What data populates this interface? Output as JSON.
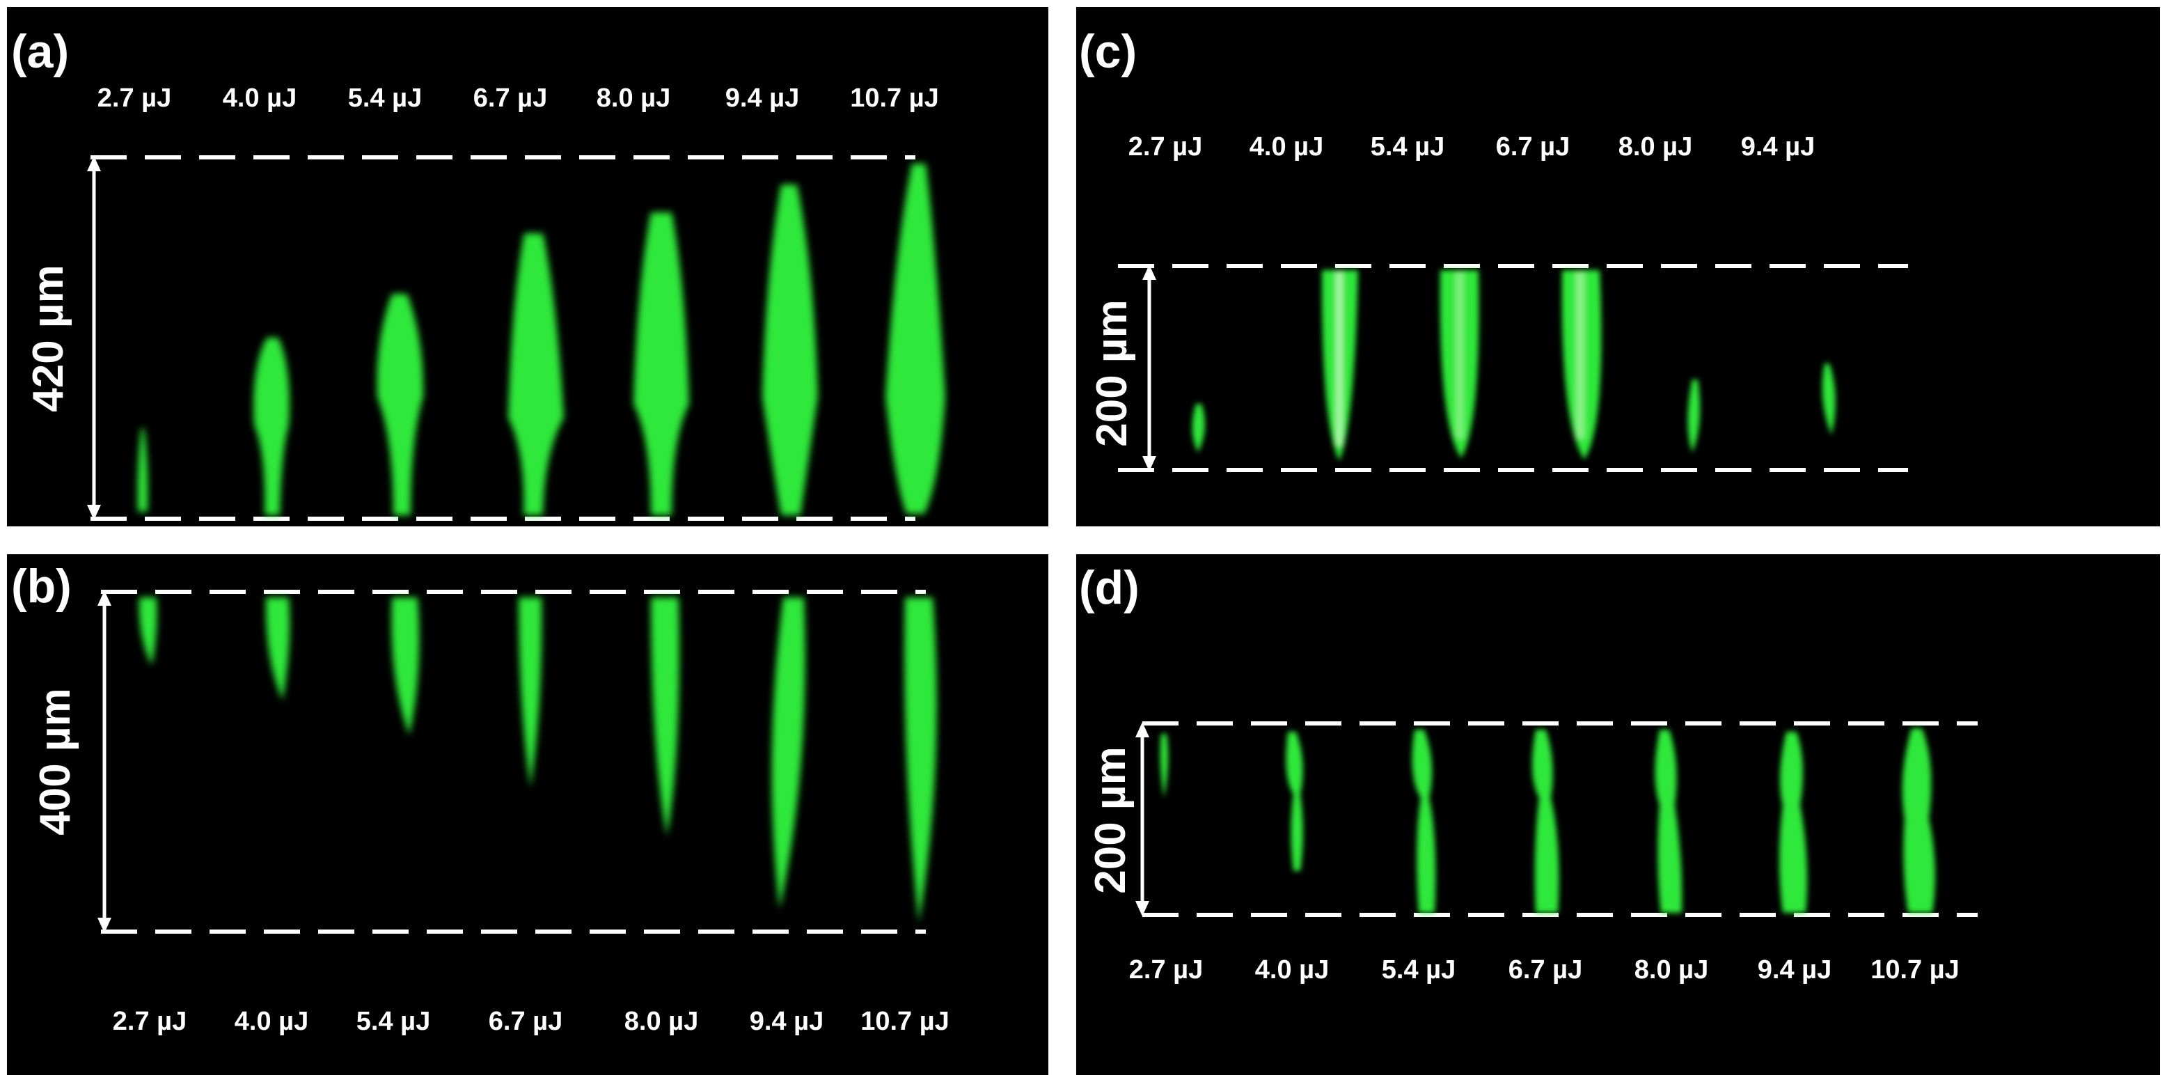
{
  "colors": {
    "background": "#000000",
    "text": "#ffffff",
    "track": "#2ee83a",
    "track_dim": "#18a828"
  },
  "panels": {
    "a": {
      "label": "(a)",
      "scale": "420 µm",
      "energies": [
        "2.7 µJ",
        "4.0 µJ",
        "5.4 µJ",
        "6.7 µJ",
        "8.0 µJ",
        "9.4 µJ",
        "10.7 µJ"
      ]
    },
    "b": {
      "label": "(b)",
      "scale": "400 µm",
      "energies": [
        "2.7 µJ",
        "4.0 µJ",
        "5.4 µJ",
        "6.7 µJ",
        "8.0 µJ",
        "9.4 µJ",
        "10.7 µJ"
      ]
    },
    "c": {
      "label": "(c)",
      "scale": "200 µm",
      "energies": [
        "2.7 µJ",
        "4.0 µJ",
        "5.4 µJ",
        "6.7 µJ",
        "8.0 µJ",
        "9.4 µJ"
      ]
    },
    "d": {
      "label": "(d)",
      "scale": "200 µm",
      "energies": [
        "2.7 µJ",
        "4.0 µJ",
        "5.4 µJ",
        "6.7 µJ",
        "8.0 µJ",
        "9.4 µJ",
        "10.7 µJ"
      ]
    }
  }
}
